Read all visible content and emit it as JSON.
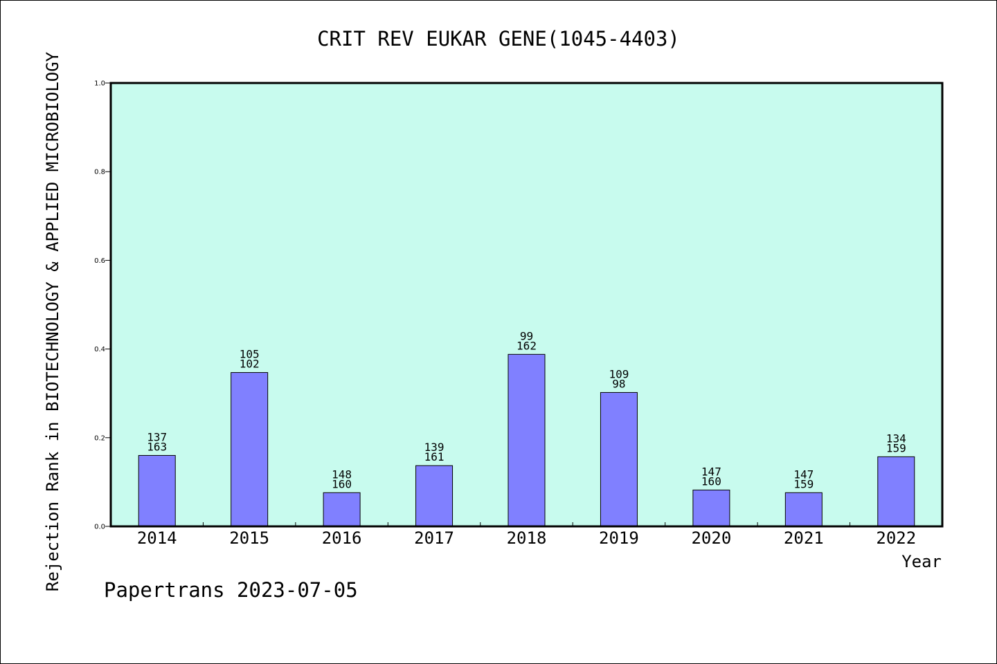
{
  "chart_data": {
    "type": "bar",
    "title": "CRIT REV EUKAR GENE(1045-4403)",
    "xlabel": "Year",
    "ylabel": "Rejection Rank in BIOTECHNOLOGY & APPLIED MICROBIOLOGY",
    "ylim": [
      0,
      1.0
    ],
    "yticks": [
      "0.0",
      "0.2",
      "0.4",
      "0.6",
      "0.8",
      "1.0"
    ],
    "grid": false,
    "categories": [
      "2014",
      "2015",
      "2016",
      "2017",
      "2018",
      "2019",
      "2020",
      "2021",
      "2022"
    ],
    "values": [
      0.16,
      0.347,
      0.076,
      0.137,
      0.388,
      0.302,
      0.082,
      0.076,
      0.157
    ],
    "labels_top": [
      "137",
      "105",
      "148",
      "139",
      "99",
      "109",
      "147",
      "147",
      "134"
    ],
    "labels_bottom": [
      "163",
      "102",
      "160",
      "161",
      "162",
      "98",
      "160",
      "159",
      "159"
    ],
    "colors": {
      "bar": "#8080ff",
      "plot_bg": "#c8fbee"
    }
  },
  "footer": "Papertrans 2023-07-05"
}
